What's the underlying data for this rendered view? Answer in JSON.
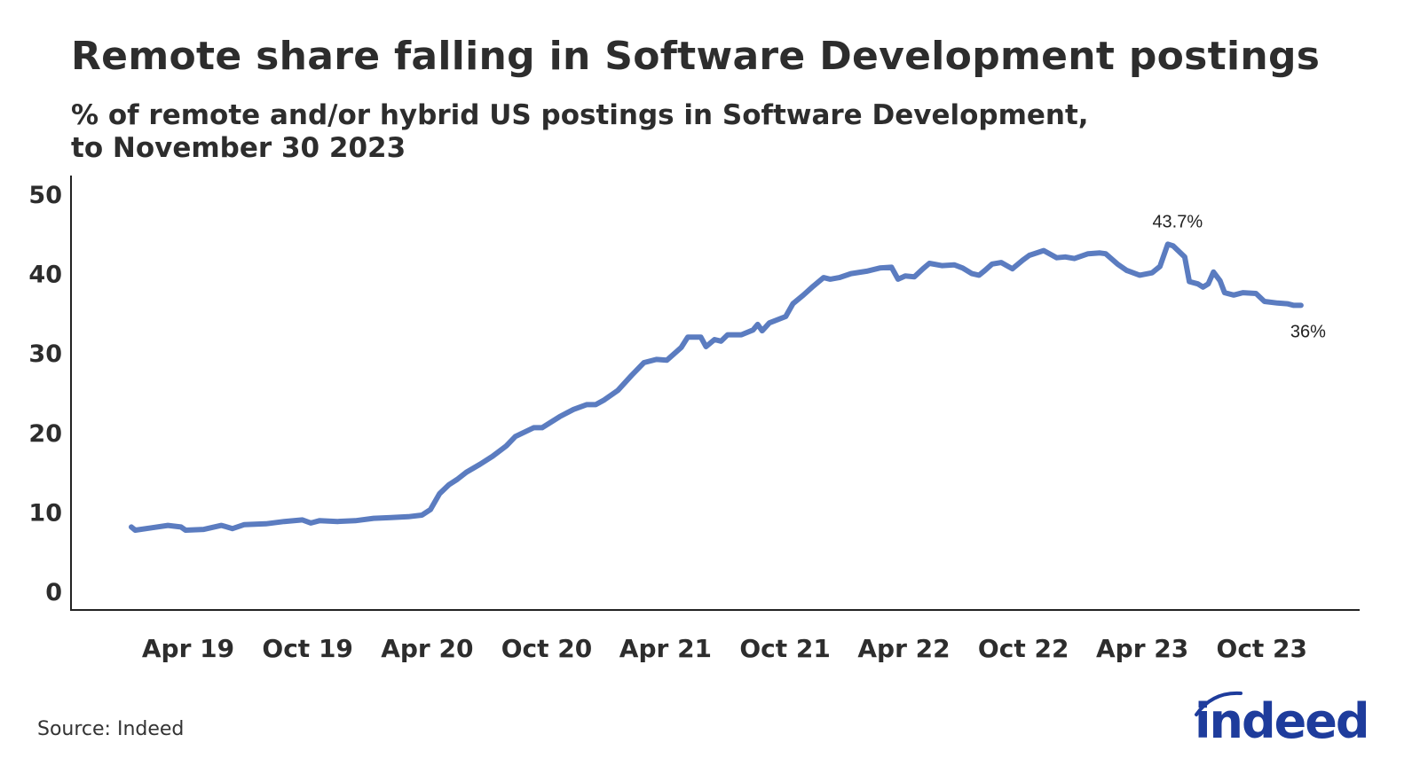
{
  "title": "Remote share falling in Software Development postings",
  "subtitle_line1": "% of remote and/or hybrid US postings in Software Development,",
  "subtitle_line2": "to November 30 2023",
  "source": "Source: Indeed",
  "logo_text": "indeed",
  "colors": {
    "line": "#5b7cc0",
    "text": "#2d2d2d",
    "logo": "#1e3c9c"
  },
  "chart_data": {
    "type": "line",
    "title": "Remote share falling in Software Development postings",
    "xlabel": "",
    "ylabel": "",
    "ylim": [
      0,
      50
    ],
    "yticks": [
      "0",
      "10",
      "20",
      "30",
      "40",
      "50"
    ],
    "xticks": [
      {
        "date": "2019-04-01",
        "label": "Apr 19"
      },
      {
        "date": "2019-10-01",
        "label": "Oct 19"
      },
      {
        "date": "2020-04-01",
        "label": "Apr 20"
      },
      {
        "date": "2020-10-01",
        "label": "Oct 20"
      },
      {
        "date": "2021-04-01",
        "label": "Apr 21"
      },
      {
        "date": "2021-10-01",
        "label": "Oct 21"
      },
      {
        "date": "2022-04-01",
        "label": "Apr 22"
      },
      {
        "date": "2022-10-01",
        "label": "Oct 22"
      },
      {
        "date": "2023-04-01",
        "label": "Apr 23"
      },
      {
        "date": "2023-10-01",
        "label": "Oct 23"
      }
    ],
    "grid": false,
    "annotations": [
      {
        "date": "2023-05-10",
        "value": 43.7,
        "text": "43.7%"
      },
      {
        "date": "2023-11-30",
        "value": 36.0,
        "text": "36%"
      }
    ],
    "series": [
      {
        "x": [
          "2019-01-04",
          "2019-01-10",
          "2019-02-04",
          "2019-03-01",
          "2019-03-21",
          "2019-03-28",
          "2019-04-25",
          "2019-05-22",
          "2019-06-08",
          "2019-06-26",
          "2019-07-29",
          "2019-08-26",
          "2019-09-23",
          "2019-10-06",
          "2019-10-19",
          "2019-11-16",
          "2019-12-13",
          "2020-01-10",
          "2020-02-06",
          "2020-03-03",
          "2020-03-24",
          "2020-04-06",
          "2020-04-20",
          "2020-05-04",
          "2020-05-17",
          "2020-05-31",
          "2020-06-21",
          "2020-07-10",
          "2020-07-31",
          "2020-08-14",
          "2020-09-11",
          "2020-09-24",
          "2020-10-21",
          "2020-11-11",
          "2020-12-01",
          "2020-12-15",
          "2020-12-28",
          "2021-01-18",
          "2021-02-08",
          "2021-02-27",
          "2021-03-18",
          "2021-04-03",
          "2021-04-25",
          "2021-05-05",
          "2021-05-25",
          "2021-06-02",
          "2021-06-15",
          "2021-06-25",
          "2021-07-05",
          "2021-07-26",
          "2021-08-13",
          "2021-08-20",
          "2021-08-27",
          "2021-09-07",
          "2021-10-02",
          "2021-10-13",
          "2021-10-29",
          "2021-11-13",
          "2021-11-29",
          "2021-12-09",
          "2021-12-23",
          "2022-01-10",
          "2022-02-03",
          "2022-02-23",
          "2022-03-13",
          "2022-03-23",
          "2022-04-03",
          "2022-04-17",
          "2022-04-30",
          "2022-05-10",
          "2022-05-29",
          "2022-06-17",
          "2022-06-30",
          "2022-07-14",
          "2022-07-25",
          "2022-08-03",
          "2022-08-14",
          "2022-08-28",
          "2022-09-14",
          "2022-09-30",
          "2022-10-10",
          "2022-11-01",
          "2022-11-21",
          "2022-12-04",
          "2022-12-18",
          "2023-01-08",
          "2023-01-26",
          "2023-02-04",
          "2023-02-22",
          "2023-03-08",
          "2023-03-28",
          "2023-04-16",
          "2023-04-28",
          "2023-05-10",
          "2023-05-18",
          "2023-06-05",
          "2023-06-12",
          "2023-06-25",
          "2023-07-03",
          "2023-07-11",
          "2023-07-19",
          "2023-07-29",
          "2023-08-05",
          "2023-08-19",
          "2023-09-02",
          "2023-09-22",
          "2023-10-05",
          "2023-10-25",
          "2023-11-09",
          "2023-11-19",
          "2023-11-30"
        ],
        "values": [
          8.1,
          7.7,
          8.0,
          8.3,
          8.1,
          7.7,
          7.8,
          8.3,
          7.9,
          8.4,
          8.5,
          8.8,
          9.0,
          8.6,
          8.9,
          8.8,
          8.9,
          9.2,
          9.3,
          9.4,
          9.6,
          10.3,
          12.3,
          13.4,
          14.1,
          15.0,
          16.0,
          17.0,
          18.3,
          19.5,
          20.6,
          20.6,
          22.0,
          22.9,
          23.5,
          23.5,
          24.1,
          25.3,
          27.2,
          28.8,
          29.2,
          29.1,
          30.7,
          32.0,
          32.0,
          30.8,
          31.7,
          31.5,
          32.3,
          32.3,
          32.9,
          33.6,
          32.8,
          33.8,
          34.6,
          36.2,
          37.3,
          38.4,
          39.5,
          39.3,
          39.5,
          40.0,
          40.3,
          40.7,
          40.8,
          39.3,
          39.7,
          39.6,
          40.6,
          41.3,
          41.0,
          41.1,
          40.7,
          40.0,
          39.8,
          40.4,
          41.2,
          41.4,
          40.6,
          41.7,
          42.3,
          42.9,
          42.0,
          42.1,
          41.9,
          42.5,
          42.6,
          42.5,
          41.2,
          40.4,
          39.8,
          40.1,
          40.9,
          43.7,
          43.5,
          42.1,
          39.0,
          38.7,
          38.3,
          38.7,
          40.2,
          39.1,
          37.6,
          37.3,
          37.6,
          37.5,
          36.5,
          36.3,
          36.2,
          36.0,
          36.0
        ]
      }
    ]
  }
}
